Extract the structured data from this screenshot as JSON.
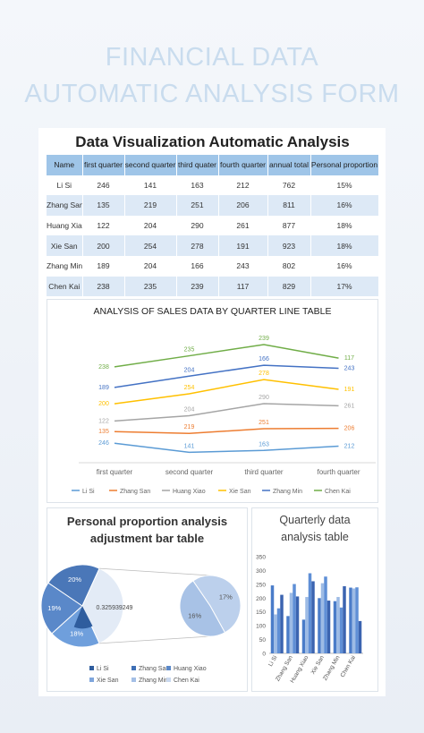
{
  "header": {
    "title_lines": [
      "FINANCIAL DATA",
      "AUTOMATIC ANALYSIS FORM"
    ]
  },
  "table": {
    "title": "Data Visualization Automatic Analysis",
    "columns": [
      "Name",
      "first quarter",
      "second quarter",
      "third quater",
      "fourth quarter",
      "annual total",
      "Personal proportion"
    ],
    "rows": [
      [
        "Li Si",
        246,
        141,
        163,
        212,
        762,
        "15%"
      ],
      [
        "Zhang San",
        135,
        219,
        251,
        206,
        811,
        "16%"
      ],
      [
        "Huang Xiao",
        122,
        204,
        290,
        261,
        877,
        "18%"
      ],
      [
        "Xie San",
        200,
        254,
        278,
        191,
        923,
        "18%"
      ],
      [
        "Zhang Min",
        189,
        204,
        166,
        243,
        802,
        "16%"
      ],
      [
        "Chen Kai",
        238,
        235,
        239,
        117,
        829,
        "17%"
      ]
    ]
  },
  "chart_data": [
    {
      "type": "line",
      "stacked": true,
      "title": "ANALYSIS OF SALES DATA BY QUARTER LINE TABLE",
      "categories": [
        "first quarter",
        "second quarter",
        "third quarter",
        "fourth quarter"
      ],
      "series": [
        {
          "name": "Li Si",
          "color": "#5b9bd5",
          "values": [
            246,
            141,
            163,
            212
          ]
        },
        {
          "name": "Zhang San",
          "color": "#ed7d31",
          "values": [
            135,
            219,
            251,
            206
          ]
        },
        {
          "name": "Huang Xiao",
          "color": "#a5a5a5",
          "values": [
            122,
            204,
            290,
            261
          ]
        },
        {
          "name": "Xie San",
          "color": "#ffc000",
          "values": [
            200,
            254,
            278,
            191
          ]
        },
        {
          "name": "Zhang Min",
          "color": "#4472c4",
          "values": [
            189,
            204,
            166,
            243
          ]
        },
        {
          "name": "Chen Kai",
          "color": "#70ad47",
          "values": [
            238,
            235,
            239,
            117
          ]
        }
      ]
    },
    {
      "type": "pie_of_pie",
      "title": "Personal proportion analysis adjustment bar table",
      "values": [
        18,
        19,
        20
      ],
      "value_labels": [
        "18%",
        "19%",
        "20%"
      ],
      "colors": [
        "#6f9fdc",
        "#5a88c9",
        "#4a77b8"
      ],
      "other": {
        "value": 0.325939249,
        "color": "#e3ebf6"
      },
      "secondary": {
        "values": [
          17,
          16
        ],
        "value_labels": [
          "17%",
          "16%"
        ],
        "colors": [
          "#bcd0ec",
          "#a8c2e6"
        ]
      },
      "legend": [
        {
          "name": "Li Si",
          "color": "#2f5d9e"
        },
        {
          "name": "Zhang San",
          "color": "#3f6fb5"
        },
        {
          "name": "Huang Xiao",
          "color": "#5a88c9"
        },
        {
          "name": "Xie San",
          "color": "#7fa6dc"
        },
        {
          "name": "Zhang Min",
          "color": "#a4bfe6"
        },
        {
          "name": "Chen Kai",
          "color": "#c9d8ef"
        }
      ]
    },
    {
      "type": "bar",
      "title": "Quarterly data analysis table",
      "categories": [
        "Li Si",
        "Zhang San",
        "Huang Xiao",
        "Xie San",
        "Zhang Min",
        "Chen Kai"
      ],
      "ylim": [
        0,
        350
      ],
      "yticks": [
        0,
        50,
        100,
        150,
        200,
        250,
        300,
        350
      ],
      "series": [
        {
          "name": "first quarter",
          "color": "#4a7cc9",
          "values": [
            246,
            135,
            122,
            200,
            189,
            238
          ]
        },
        {
          "name": "second quarter",
          "color": "#9dbbe5",
          "values": [
            141,
            219,
            204,
            254,
            204,
            235
          ]
        },
        {
          "name": "third quater",
          "color": "#5f8fd6",
          "values": [
            163,
            251,
            290,
            278,
            166,
            239
          ]
        },
        {
          "name": "fourth quarter",
          "color": "#3b64b0",
          "values": [
            212,
            206,
            261,
            191,
            243,
            117
          ]
        }
      ]
    }
  ]
}
